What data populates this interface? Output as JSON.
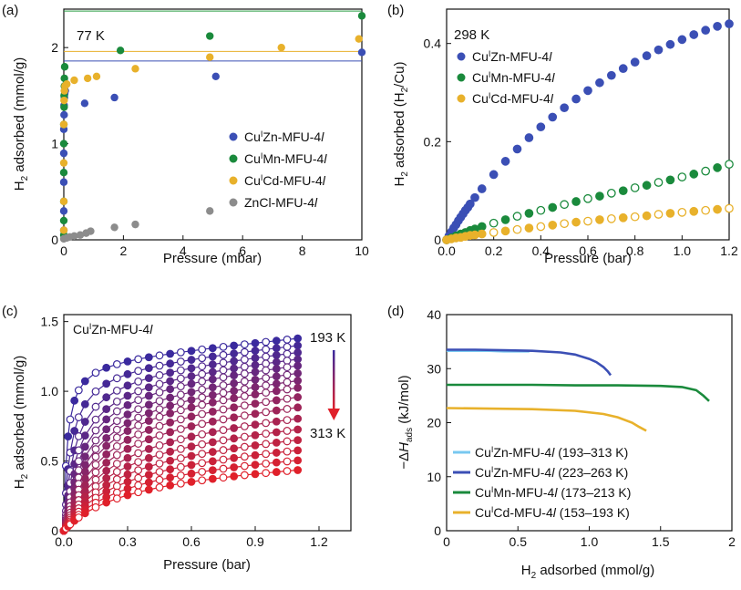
{
  "chart_data": [
    {
      "panel": "(a)",
      "type": "scatter",
      "xlabel": "Pressure (mbar)",
      "ylabel": "H2 adsorbed (mmol/g)",
      "xlim": [
        0,
        10
      ],
      "ylim": [
        0,
        2.4
      ],
      "xticks": [
        "0",
        "2",
        "4",
        "6",
        "8",
        "10"
      ],
      "yticks": [
        "0",
        "1",
        "2"
      ],
      "annotation": "77 K",
      "legend_position": "bottom-right",
      "hlines": [
        {
          "y": 2.38,
          "color": "#2a9d45"
        },
        {
          "y": 1.96,
          "color": "#e8b12b"
        },
        {
          "y": 1.86,
          "color": "#3b4fb5"
        }
      ],
      "series": [
        {
          "name": "CuIZn-MFU-4l",
          "color": "#3b4fb5",
          "x": [
            0.0,
            0.0,
            0.0,
            0.0,
            0.0,
            0.01,
            0.01,
            0.02,
            0.03,
            0.05,
            0.7,
            1.7,
            5.1,
            10.0
          ],
          "y": [
            0.1,
            0.3,
            0.6,
            0.9,
            1.15,
            1.3,
            1.4,
            1.48,
            1.52,
            1.55,
            1.42,
            1.48,
            1.7,
            1.95
          ]
        },
        {
          "name": "CuIMn-MFU-4l",
          "color": "#1a8a3c",
          "x": [
            0.0,
            0.0,
            0.0,
            0.0,
            0.0,
            0.0,
            0.01,
            0.01,
            0.02,
            0.02,
            0.03,
            1.9,
            4.9,
            10.0
          ],
          "y": [
            0.05,
            0.2,
            0.4,
            0.7,
            1.0,
            1.2,
            1.38,
            1.5,
            1.6,
            1.68,
            1.8,
            1.97,
            2.12,
            2.33
          ]
        },
        {
          "name": "CuICd-MFU-4l",
          "color": "#e8b12b",
          "x": [
            0.0,
            0.0,
            0.0,
            0.0,
            0.01,
            0.02,
            0.04,
            0.1,
            0.35,
            0.8,
            1.1,
            2.4,
            4.9,
            7.3,
            9.9
          ],
          "y": [
            0.1,
            0.4,
            0.8,
            1.2,
            1.45,
            1.55,
            1.6,
            1.62,
            1.66,
            1.68,
            1.7,
            1.78,
            1.9,
            2.0,
            2.09
          ]
        },
        {
          "name": "ZnCl-MFU-4l",
          "color": "#8c8c8c",
          "x": [
            0.0,
            0.1,
            0.2,
            0.35,
            0.55,
            0.75,
            0.9,
            1.7,
            2.4,
            4.9
          ],
          "y": [
            0.01,
            0.02,
            0.03,
            0.04,
            0.05,
            0.07,
            0.09,
            0.13,
            0.16,
            0.3
          ]
        }
      ]
    },
    {
      "panel": "(b)",
      "type": "scatter",
      "xlabel": "Pressure (bar)",
      "ylabel": "H2 adsorbed (H2/Cu)",
      "xlim": [
        0,
        1.2
      ],
      "ylim": [
        0,
        0.47
      ],
      "xticks": [
        "0.0",
        "0.2",
        "0.4",
        "0.6",
        "0.8",
        "1.0",
        "1.2"
      ],
      "yticks": [
        "0",
        "0.2",
        "0.4"
      ],
      "annotation": "298 K",
      "legend_position": "top-left",
      "series": [
        {
          "name": "CuIZn-MFU-4l",
          "color": "#3b4fb5",
          "x": [
            0.0,
            0.01,
            0.02,
            0.03,
            0.04,
            0.05,
            0.06,
            0.07,
            0.08,
            0.09,
            0.1,
            0.12,
            0.15,
            0.2,
            0.25,
            0.3,
            0.35,
            0.4,
            0.45,
            0.5,
            0.55,
            0.6,
            0.65,
            0.7,
            0.75,
            0.8,
            0.85,
            0.9,
            0.95,
            1.0,
            1.05,
            1.1,
            1.15,
            1.2
          ],
          "y": [
            0.0,
            0.008,
            0.016,
            0.024,
            0.031,
            0.039,
            0.046,
            0.053,
            0.06,
            0.066,
            0.073,
            0.086,
            0.104,
            0.133,
            0.16,
            0.185,
            0.208,
            0.23,
            0.25,
            0.269,
            0.287,
            0.304,
            0.32,
            0.335,
            0.349,
            0.362,
            0.375,
            0.387,
            0.398,
            0.408,
            0.418,
            0.427,
            0.435,
            0.44
          ]
        },
        {
          "name": "CuIMn-MFU-4l",
          "color": "#1a8a3c",
          "x": [
            0.0,
            0.02,
            0.04,
            0.06,
            0.08,
            0.1,
            0.12,
            0.15,
            0.2,
            0.25,
            0.3,
            0.35,
            0.4,
            0.45,
            0.5,
            0.55,
            0.6,
            0.65,
            0.7,
            0.75,
            0.8,
            0.85,
            0.9,
            0.95,
            1.0,
            1.05,
            1.1,
            1.15,
            1.2
          ],
          "y": [
            0.0,
            0.004,
            0.008,
            0.012,
            0.015,
            0.019,
            0.022,
            0.027,
            0.034,
            0.041,
            0.048,
            0.054,
            0.06,
            0.066,
            0.072,
            0.078,
            0.084,
            0.089,
            0.095,
            0.1,
            0.106,
            0.111,
            0.117,
            0.122,
            0.128,
            0.134,
            0.14,
            0.147,
            0.154
          ]
        },
        {
          "name": "CuICd-MFU-4l",
          "color": "#e8b12b",
          "x": [
            0.0,
            0.02,
            0.04,
            0.06,
            0.08,
            0.1,
            0.12,
            0.15,
            0.2,
            0.25,
            0.3,
            0.35,
            0.4,
            0.45,
            0.5,
            0.55,
            0.6,
            0.65,
            0.7,
            0.75,
            0.8,
            0.85,
            0.9,
            0.95,
            1.0,
            1.05,
            1.1,
            1.15,
            1.2
          ],
          "y": [
            0.0,
            0.002,
            0.004,
            0.005,
            0.007,
            0.009,
            0.01,
            0.012,
            0.015,
            0.018,
            0.021,
            0.024,
            0.027,
            0.03,
            0.033,
            0.036,
            0.038,
            0.041,
            0.043,
            0.045,
            0.047,
            0.049,
            0.052,
            0.054,
            0.056,
            0.058,
            0.06,
            0.062,
            0.064
          ]
        }
      ]
    },
    {
      "panel": "(c)",
      "type": "scatter",
      "xlabel": "Pressure (bar)",
      "ylabel": "H2 adsorbed (mmol/g)",
      "xlim": [
        0,
        1.35
      ],
      "ylim": [
        0,
        1.55
      ],
      "xticks": [
        "0.0",
        "0.3",
        "0.6",
        "0.9",
        "1.2"
      ],
      "yticks": [
        "0",
        "0.5",
        "1.0",
        "1.5"
      ],
      "title": "CuIZn-MFU-4l",
      "temperature_labels": [
        "193 K",
        "313 K"
      ],
      "temperature_colors": [
        "#3a2a9e",
        "#e0202a"
      ],
      "isotherm_plateaus": [
        1.4,
        1.37,
        1.34,
        1.31,
        1.28,
        1.24,
        1.2,
        1.16,
        1.1,
        1.03,
        0.95,
        0.87,
        0.79,
        0.71,
        0.63,
        0.55
      ],
      "x": [
        0.0,
        0.01,
        0.02,
        0.03,
        0.05,
        0.07,
        0.1,
        0.15,
        0.2,
        0.25,
        0.3,
        0.35,
        0.4,
        0.45,
        0.5,
        0.55,
        0.6,
        0.65,
        0.7,
        0.75,
        0.8,
        0.85,
        0.9,
        0.95,
        1.0,
        1.05,
        1.1
      ]
    },
    {
      "panel": "(d)",
      "type": "line",
      "xlabel": "H2 adsorbed (mmol/g)",
      "ylabel": "−ΔHads (kJ/mol)",
      "xlim": [
        0,
        2.0
      ],
      "ylim": [
        0,
        40
      ],
      "xticks": [
        "0",
        "0.5",
        "1.0",
        "1.5",
        "2"
      ],
      "yticks": [
        "0",
        "10",
        "20",
        "30",
        "40"
      ],
      "legend_position": "bottom-left",
      "series": [
        {
          "name": "CuIZn-MFU-4l (193–313 K)",
          "color": "#78c8f0",
          "x": [
            0.0,
            0.1,
            0.2,
            0.3,
            0.4,
            0.5,
            0.58
          ],
          "y": [
            33.3,
            33.3,
            33.3,
            33.3,
            33.2,
            33.2,
            33.2
          ]
        },
        {
          "name": "CuIZn-MFU-4l (223–263 K)",
          "color": "#3b4fb5",
          "x": [
            0.0,
            0.2,
            0.4,
            0.6,
            0.8,
            0.9,
            1.0,
            1.05,
            1.1,
            1.13,
            1.15
          ],
          "y": [
            33.5,
            33.5,
            33.4,
            33.3,
            33.0,
            32.6,
            31.8,
            31.2,
            30.3,
            29.5,
            28.8
          ]
        },
        {
          "name": "CuIMn-MFU-4l (173–213 K)",
          "color": "#1a8a3c",
          "x": [
            0.0,
            0.3,
            0.6,
            0.9,
            1.2,
            1.5,
            1.65,
            1.75,
            1.8,
            1.84
          ],
          "y": [
            27.0,
            27.0,
            27.0,
            26.9,
            26.9,
            26.8,
            26.6,
            26.0,
            25.0,
            24.0
          ]
        },
        {
          "name": "CuICd-MFU-4l (153–193 K)",
          "color": "#e8b12b",
          "x": [
            0.0,
            0.3,
            0.6,
            0.9,
            1.1,
            1.2,
            1.3,
            1.35,
            1.4
          ],
          "y": [
            22.7,
            22.6,
            22.5,
            22.2,
            21.6,
            21.0,
            20.0,
            19.2,
            18.5
          ]
        }
      ]
    }
  ],
  "panels": {
    "a": {
      "label": "(a)",
      "xlabel": "Pressure (mbar)",
      "ylabel_main": "H",
      "ylabel_sub": "2",
      "ylabel_rest": " adsorbed (mmol/g)",
      "annotation": "77 K",
      "legend": [
        {
          "pre": "Cu",
          "sup": "I",
          "mid": "Zn-MFU-4",
          "ital": "l"
        },
        {
          "pre": "Cu",
          "sup": "I",
          "mid": "Mn-MFU-4",
          "ital": "l"
        },
        {
          "pre": "Cu",
          "sup": "I",
          "mid": "Cd-MFU-4",
          "ital": "l"
        },
        {
          "pre": "ZnCl-MFU-4",
          "sup": "",
          "mid": "",
          "ital": "l"
        }
      ]
    },
    "b": {
      "label": "(b)",
      "xlabel": "Pressure (bar)",
      "ylabel_main": "H",
      "ylabel_sub": "2",
      "ylabel_rest": " adsorbed (H",
      "ylabel_sub2": "2",
      "ylabel_end": "/Cu)",
      "annotation": "298 K",
      "legend": [
        {
          "pre": "Cu",
          "sup": "I",
          "mid": "Zn-MFU-4",
          "ital": "l"
        },
        {
          "pre": "Cu",
          "sup": "I",
          "mid": "Mn-MFU-4",
          "ital": "l"
        },
        {
          "pre": "Cu",
          "sup": "I",
          "mid": "Cd-MFU-4",
          "ital": "l"
        }
      ]
    },
    "c": {
      "label": "(c)",
      "xlabel": "Pressure (bar)",
      "ylabel_main": "H",
      "ylabel_sub": "2",
      "ylabel_rest": " adsorbed (mmol/g)",
      "title": {
        "pre": "Cu",
        "sup": "I",
        "mid": "Zn-MFU-4",
        "ital": "l"
      },
      "t_high": "193 K",
      "t_low": "313 K"
    },
    "d": {
      "label": "(d)",
      "xlabel_main": "H",
      "xlabel_sub": "2",
      "xlabel_rest": " adsorbed (mmol/g)",
      "ylabel_pre": "−Δ",
      "ylabel_H": "H",
      "ylabel_sub": "ads",
      "ylabel_rest": " (kJ/mol)",
      "legend": [
        {
          "pre": "Cu",
          "sup": "I",
          "mid": "Zn-MFU-4",
          "ital": "l",
          "post": " (193–313 K)"
        },
        {
          "pre": "Cu",
          "sup": "I",
          "mid": "Zn-MFU-4",
          "ital": "l",
          "post": " (223–263 K)"
        },
        {
          "pre": "Cu",
          "sup": "I",
          "mid": "Mn-MFU-4",
          "ital": "l",
          "post": " (173–213 K)"
        },
        {
          "pre": "Cu",
          "sup": "I",
          "mid": "Cd-MFU-4",
          "ital": "l",
          "post": " (153–193 K)"
        }
      ]
    }
  }
}
